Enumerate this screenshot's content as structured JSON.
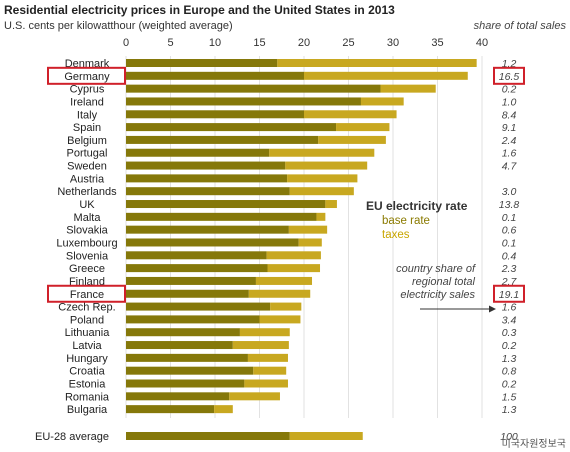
{
  "chart_data": {
    "type": "bar",
    "orientation": "horizontal",
    "stacked": true,
    "title": "Residential electricity prices in Europe and the United States in 2013",
    "subtitle": "U.S. cents per kilowatthour (weighted average)",
    "share_header": "share of total sales",
    "xlim": [
      0,
      40
    ],
    "x_ticks": [
      0,
      5,
      10,
      15,
      20,
      25,
      30,
      35,
      40
    ],
    "categories": [
      "Denmark",
      "Germany",
      "Cyprus",
      "Ireland",
      "Italy",
      "Spain",
      "Belgium",
      "Portugal",
      "Sweden",
      "Austria",
      "Netherlands",
      "UK",
      "Malta",
      "Slovakia",
      "Luxembourg",
      "Slovenia",
      "Greece",
      "Finland",
      "France",
      "Czech Rep.",
      "Poland",
      "Lithuania",
      "Latvia",
      "Hungary",
      "Croatia",
      "Estonia",
      "Romania",
      "Bulgaria",
      "EU-28 average"
    ],
    "shares": [
      "1.2",
      "16.5",
      "0.2",
      "1.0",
      "8.4",
      "9.1",
      "2.4",
      "1.6",
      "4.7",
      "",
      "3.0",
      "13.8",
      "0.1",
      "0.6",
      "0.1",
      "0.4",
      "2.3",
      "2.7",
      "19.1",
      "1.6",
      "3.4",
      "0.3",
      "0.2",
      "1.3",
      "0.8",
      "0.2",
      "1.5",
      "1.3",
      "100"
    ],
    "series": [
      {
        "name": "base rate",
        "color": "#85780a",
        "values": [
          17.0,
          20.0,
          28.6,
          26.4,
          20.0,
          23.6,
          21.6,
          16.1,
          17.9,
          18.1,
          18.4,
          22.4,
          21.4,
          18.3,
          19.4,
          15.8,
          15.9,
          14.6,
          13.8,
          16.2,
          15.0,
          12.8,
          12.0,
          13.7,
          14.3,
          13.3,
          11.6,
          9.9,
          18.4
        ]
      },
      {
        "name": "taxes",
        "color": "#c8a820",
        "values": [
          22.4,
          18.4,
          6.2,
          4.8,
          10.4,
          6.0,
          7.6,
          11.8,
          9.2,
          7.9,
          7.2,
          1.3,
          1.0,
          4.3,
          2.6,
          6.1,
          5.9,
          6.3,
          6.9,
          3.5,
          4.6,
          5.6,
          6.3,
          4.5,
          3.7,
          4.9,
          5.7,
          2.1,
          8.2
        ]
      }
    ],
    "highlighted": [
      "Germany",
      "France"
    ],
    "legend": {
      "title": "EU electricity rate",
      "placement": "right"
    },
    "annotation": {
      "lines": [
        "country share of",
        "regional total",
        "electricity sales"
      ]
    }
  },
  "watermark": "미국자원정보국"
}
